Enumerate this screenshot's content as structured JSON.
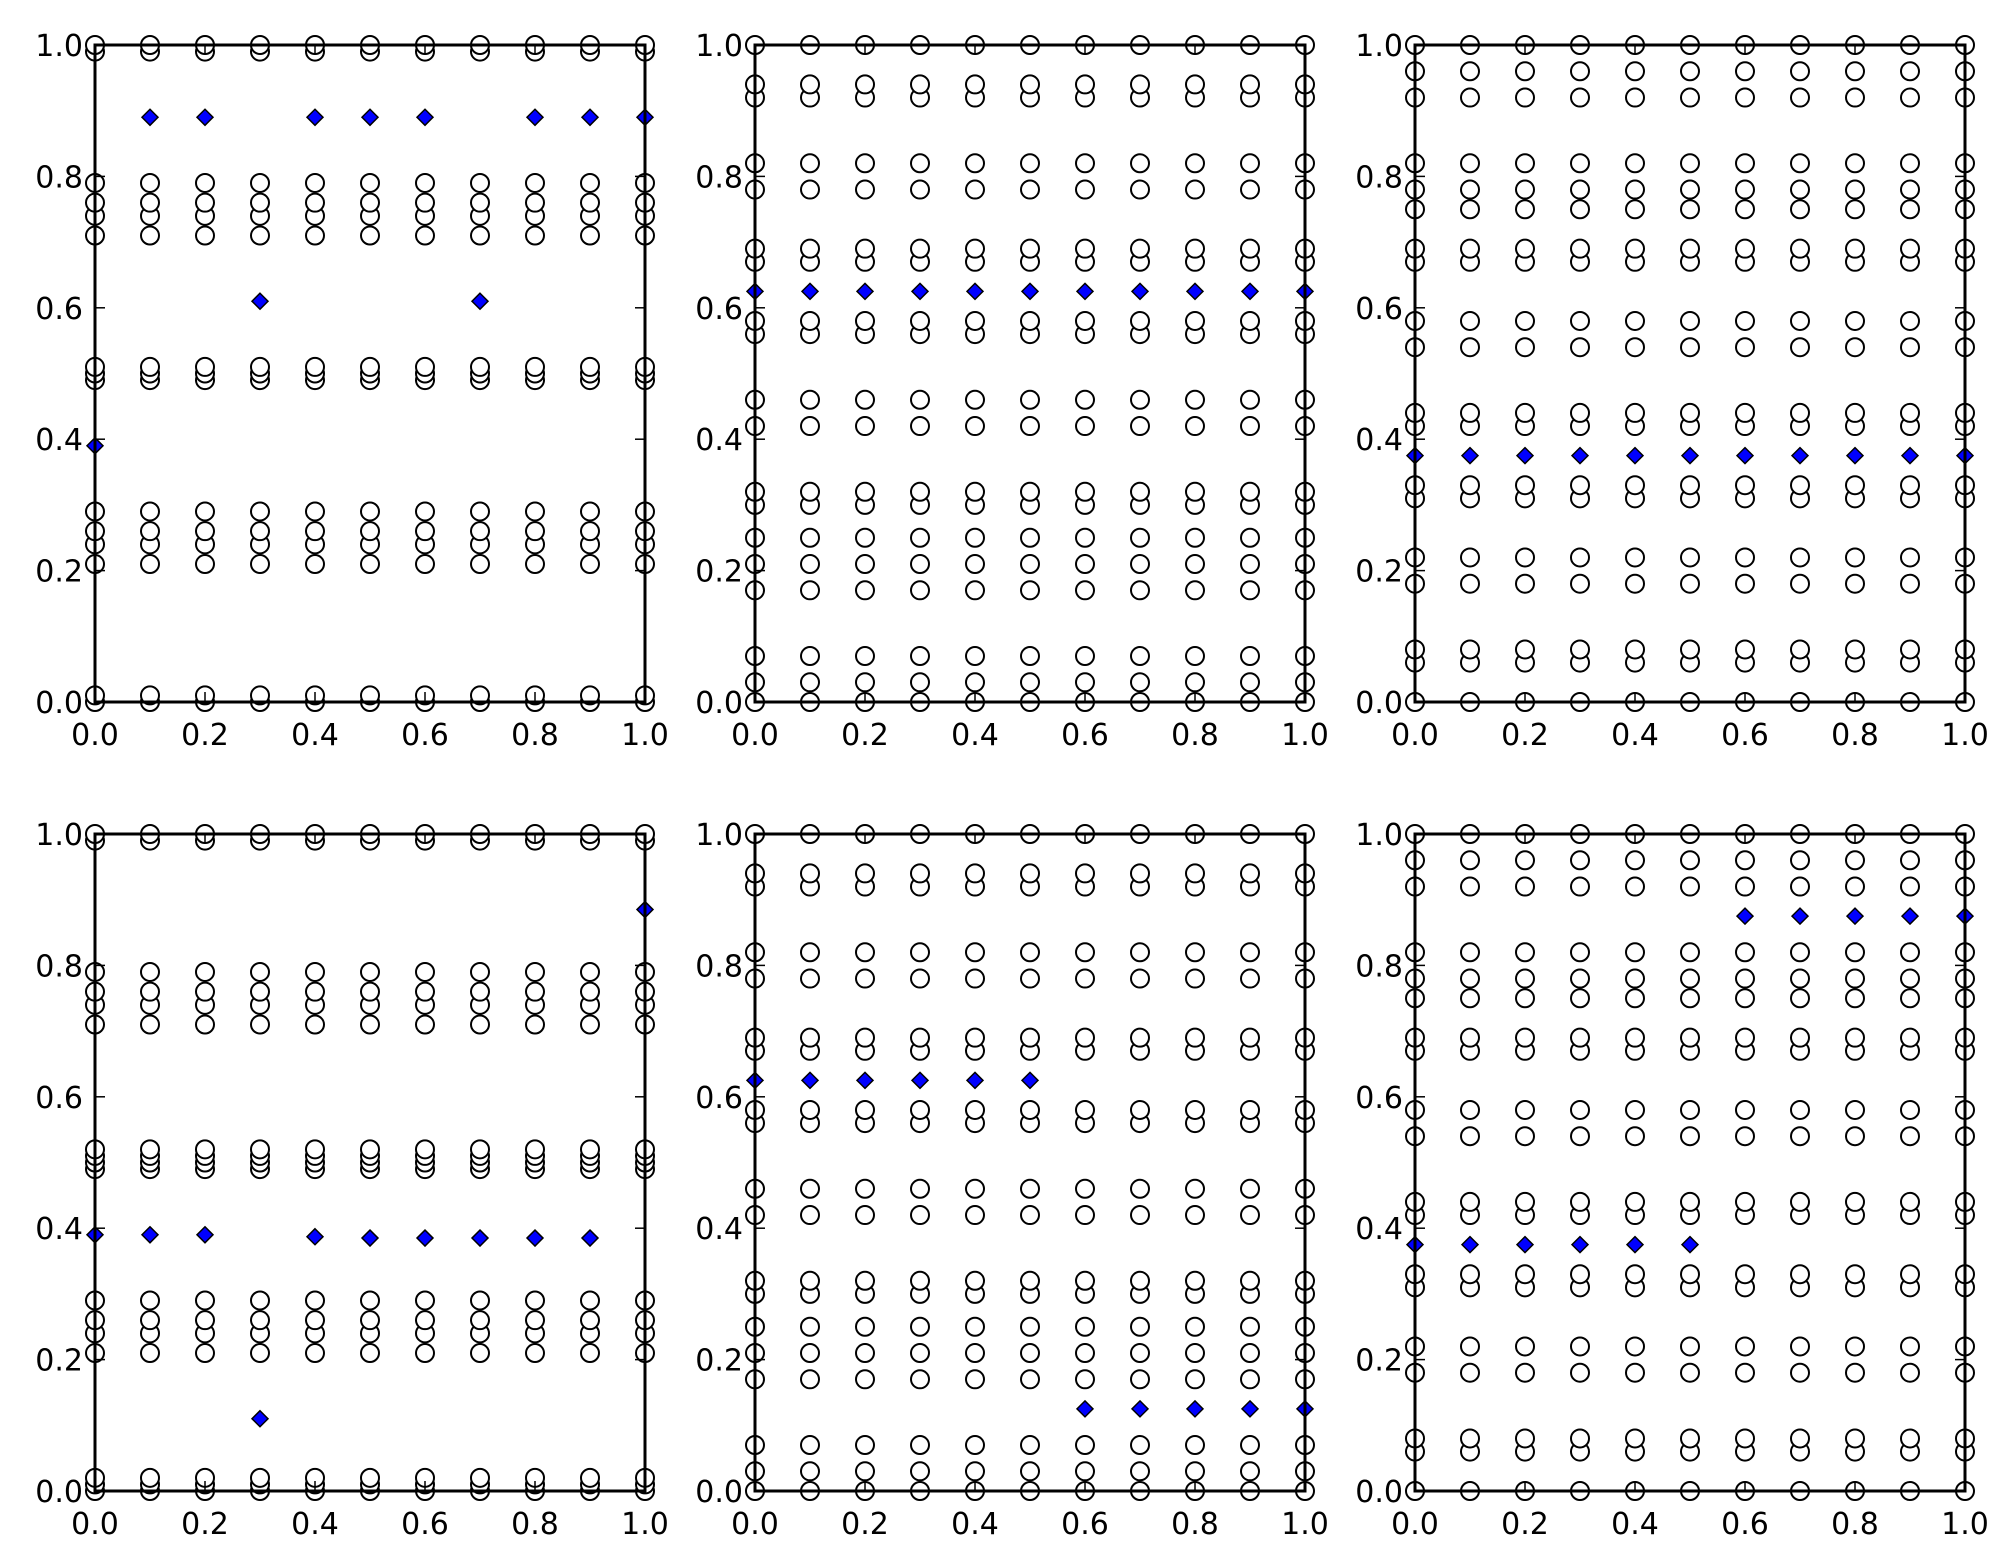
{
  "colors": {
    "circle_edge": "#000000",
    "circle_fill": "#ffffff",
    "diamond_fill": "#0000ff",
    "axes": "#000000"
  },
  "chart_data": [
    {
      "type": "scatter",
      "title": "",
      "xlabel": "",
      "ylabel": "",
      "xlim": [
        0,
        1
      ],
      "ylim": [
        0,
        1
      ],
      "xticks": [
        "0.0",
        "0.2",
        "0.4",
        "0.6",
        "0.8",
        "1.0"
      ],
      "yticks": [
        "0.0",
        "0.2",
        "0.4",
        "0.6",
        "0.8",
        "1.0"
      ],
      "grid": false,
      "series": [
        {
          "marker": "circle",
          "columns_x": [
            0,
            0.1,
            0.2,
            0.3,
            0.4,
            0.5,
            0.6,
            0.7,
            0.8,
            0.9,
            1.0
          ],
          "rows_y": [
            0.0,
            0.01,
            0.21,
            0.24,
            0.26,
            0.29,
            0.49,
            0.5,
            0.51,
            0.71,
            0.74,
            0.76,
            0.79,
            0.99,
            1.0
          ]
        },
        {
          "marker": "diamond",
          "points": [
            [
              0.0,
              0.39
            ],
            [
              0.1,
              0.89
            ],
            [
              0.2,
              0.89
            ],
            [
              0.3,
              0.61
            ],
            [
              0.4,
              0.89
            ],
            [
              0.5,
              0.89
            ],
            [
              0.6,
              0.89
            ],
            [
              0.7,
              0.61
            ],
            [
              0.8,
              0.89
            ],
            [
              0.9,
              0.89
            ],
            [
              1.0,
              0.89
            ]
          ]
        }
      ]
    },
    {
      "type": "scatter",
      "title": "",
      "xlabel": "",
      "ylabel": "",
      "xlim": [
        0,
        1
      ],
      "ylim": [
        0,
        1
      ],
      "xticks": [
        "0.0",
        "0.2",
        "0.4",
        "0.6",
        "0.8",
        "1.0"
      ],
      "yticks": [
        "0.0",
        "0.2",
        "0.4",
        "0.6",
        "0.8",
        "1.0"
      ],
      "grid": false,
      "series": [
        {
          "marker": "circle",
          "columns_x": [
            0,
            0.1,
            0.2,
            0.3,
            0.4,
            0.5,
            0.6,
            0.7,
            0.8,
            0.9,
            1.0
          ],
          "rows_y": [
            0.0,
            0.03,
            0.07,
            0.17,
            0.21,
            0.25,
            0.3,
            0.32,
            0.42,
            0.46,
            0.56,
            0.58,
            0.67,
            0.69,
            0.78,
            0.82,
            0.92,
            0.94,
            1.0
          ]
        },
        {
          "marker": "diamond",
          "points": [
            [
              0.0,
              0.625
            ],
            [
              0.1,
              0.625
            ],
            [
              0.2,
              0.625
            ],
            [
              0.3,
              0.625
            ],
            [
              0.4,
              0.625
            ],
            [
              0.5,
              0.625
            ],
            [
              0.6,
              0.625
            ],
            [
              0.7,
              0.625
            ],
            [
              0.8,
              0.625
            ],
            [
              0.9,
              0.625
            ],
            [
              1.0,
              0.625
            ]
          ]
        }
      ]
    },
    {
      "type": "scatter",
      "title": "",
      "xlabel": "",
      "ylabel": "",
      "xlim": [
        0,
        1
      ],
      "ylim": [
        0,
        1
      ],
      "xticks": [
        "0.0",
        "0.2",
        "0.4",
        "0.6",
        "0.8",
        "1.0"
      ],
      "yticks": [
        "0.0",
        "0.2",
        "0.4",
        "0.6",
        "0.8",
        "1.0"
      ],
      "grid": false,
      "series": [
        {
          "marker": "circle",
          "columns_x": [
            0,
            0.1,
            0.2,
            0.3,
            0.4,
            0.5,
            0.6,
            0.7,
            0.8,
            0.9,
            1.0
          ],
          "rows_y": [
            0.0,
            0.06,
            0.08,
            0.18,
            0.22,
            0.31,
            0.33,
            0.42,
            0.44,
            0.54,
            0.58,
            0.67,
            0.69,
            0.75,
            0.78,
            0.82,
            0.92,
            0.96,
            1.0
          ]
        },
        {
          "marker": "diamond",
          "points": [
            [
              0.0,
              0.375
            ],
            [
              0.1,
              0.375
            ],
            [
              0.2,
              0.375
            ],
            [
              0.3,
              0.375
            ],
            [
              0.4,
              0.375
            ],
            [
              0.5,
              0.375
            ],
            [
              0.6,
              0.375
            ],
            [
              0.7,
              0.375
            ],
            [
              0.8,
              0.375
            ],
            [
              0.9,
              0.375
            ],
            [
              1.0,
              0.375
            ]
          ]
        }
      ]
    },
    {
      "type": "scatter",
      "title": "",
      "xlabel": "",
      "ylabel": "",
      "xlim": [
        0,
        1
      ],
      "ylim": [
        0,
        1
      ],
      "xticks": [
        "0.0",
        "0.2",
        "0.4",
        "0.6",
        "0.8",
        "1.0"
      ],
      "yticks": [
        "0.0",
        "0.2",
        "0.4",
        "0.6",
        "0.8",
        "1.0"
      ],
      "grid": false,
      "series": [
        {
          "marker": "circle",
          "columns_x": [
            0,
            0.1,
            0.2,
            0.3,
            0.4,
            0.5,
            0.6,
            0.7,
            0.8,
            0.9,
            1.0
          ],
          "rows_y": [
            0.0,
            0.01,
            0.02,
            0.21,
            0.24,
            0.26,
            0.29,
            0.49,
            0.5,
            0.51,
            0.52,
            0.71,
            0.74,
            0.76,
            0.79,
            0.99,
            1.0
          ]
        },
        {
          "marker": "diamond",
          "points": [
            [
              0.0,
              0.39
            ],
            [
              0.1,
              0.39
            ],
            [
              0.2,
              0.39
            ],
            [
              0.3,
              0.11
            ],
            [
              0.4,
              0.387
            ],
            [
              0.5,
              0.385
            ],
            [
              0.6,
              0.385
            ],
            [
              0.7,
              0.385
            ],
            [
              0.8,
              0.385
            ],
            [
              0.9,
              0.385
            ],
            [
              1.0,
              0.885
            ]
          ]
        }
      ]
    },
    {
      "type": "scatter",
      "title": "",
      "xlabel": "",
      "ylabel": "",
      "xlim": [
        0,
        1
      ],
      "ylim": [
        0,
        1
      ],
      "xticks": [
        "0.0",
        "0.2",
        "0.4",
        "0.6",
        "0.8",
        "1.0"
      ],
      "yticks": [
        "0.0",
        "0.2",
        "0.4",
        "0.6",
        "0.8",
        "1.0"
      ],
      "grid": false,
      "series": [
        {
          "marker": "circle",
          "columns_x": [
            0,
            0.1,
            0.2,
            0.3,
            0.4,
            0.5,
            0.6,
            0.7,
            0.8,
            0.9,
            1.0
          ],
          "rows_y": [
            0.0,
            0.03,
            0.07,
            0.17,
            0.21,
            0.25,
            0.3,
            0.32,
            0.42,
            0.46,
            0.56,
            0.58,
            0.67,
            0.69,
            0.78,
            0.82,
            0.92,
            0.94,
            1.0
          ]
        },
        {
          "marker": "diamond",
          "points": [
            [
              0.0,
              0.625
            ],
            [
              0.1,
              0.625
            ],
            [
              0.2,
              0.625
            ],
            [
              0.3,
              0.625
            ],
            [
              0.4,
              0.625
            ],
            [
              0.5,
              0.625
            ],
            [
              0.6,
              0.125
            ],
            [
              0.7,
              0.125
            ],
            [
              0.8,
              0.125
            ],
            [
              0.9,
              0.125
            ],
            [
              1.0,
              0.125
            ]
          ]
        }
      ]
    },
    {
      "type": "scatter",
      "title": "",
      "xlabel": "",
      "ylabel": "",
      "xlim": [
        0,
        1
      ],
      "ylim": [
        0,
        1
      ],
      "xticks": [
        "0.0",
        "0.2",
        "0.4",
        "0.6",
        "0.8",
        "1.0"
      ],
      "yticks": [
        "0.0",
        "0.2",
        "0.4",
        "0.6",
        "0.8",
        "1.0"
      ],
      "grid": false,
      "series": [
        {
          "marker": "circle",
          "columns_x": [
            0,
            0.1,
            0.2,
            0.3,
            0.4,
            0.5,
            0.6,
            0.7,
            0.8,
            0.9,
            1.0
          ],
          "rows_y": [
            0.0,
            0.06,
            0.08,
            0.18,
            0.22,
            0.31,
            0.33,
            0.42,
            0.44,
            0.54,
            0.58,
            0.67,
            0.69,
            0.75,
            0.78,
            0.82,
            0.92,
            0.96,
            1.0
          ]
        },
        {
          "marker": "diamond",
          "points": [
            [
              0.0,
              0.375
            ],
            [
              0.1,
              0.375
            ],
            [
              0.2,
              0.375
            ],
            [
              0.3,
              0.375
            ],
            [
              0.4,
              0.375
            ],
            [
              0.5,
              0.375
            ],
            [
              0.6,
              0.875
            ],
            [
              0.7,
              0.875
            ],
            [
              0.8,
              0.875
            ],
            [
              0.9,
              0.875
            ],
            [
              1.0,
              0.875
            ]
          ]
        }
      ]
    }
  ]
}
